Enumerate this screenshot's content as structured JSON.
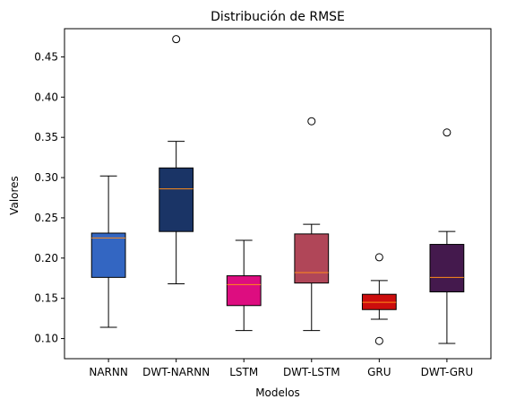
{
  "chart_data": {
    "type": "box",
    "title": "Distribución de RMSE",
    "xlabel": "Modelos",
    "ylabel": "Valores",
    "ylim": [
      0.075,
      0.485
    ],
    "yticks": [
      0.1,
      0.15,
      0.2,
      0.25,
      0.3,
      0.35,
      0.4,
      0.45
    ],
    "ytick_labels": [
      "0.10",
      "0.15",
      "0.20",
      "0.25",
      "0.30",
      "0.35",
      "0.40",
      "0.45"
    ],
    "grid": false,
    "median_color": "#ff8c1a",
    "categories": [
      "NARNN",
      "DWT-NARNN",
      "LSTM",
      "DWT-LSTM",
      "GRU",
      "DWT-GRU"
    ],
    "boxes": [
      {
        "name": "NARNN",
        "color": "#3366c2",
        "whislo": 0.114,
        "q1": 0.176,
        "med": 0.225,
        "q3": 0.231,
        "whishi": 0.302,
        "fliers": []
      },
      {
        "name": "DWT-NARNN",
        "color": "#1a3466",
        "whislo": 0.168,
        "q1": 0.233,
        "med": 0.286,
        "q3": 0.312,
        "whishi": 0.345,
        "fliers": [
          0.472
        ]
      },
      {
        "name": "LSTM",
        "color": "#dd0d80",
        "whislo": 0.11,
        "q1": 0.141,
        "med": 0.167,
        "q3": 0.178,
        "whishi": 0.222,
        "fliers": []
      },
      {
        "name": "DWT-LSTM",
        "color": "#b04658",
        "whislo": 0.11,
        "q1": 0.169,
        "med": 0.182,
        "q3": 0.23,
        "whishi": 0.242,
        "fliers": [
          0.37
        ]
      },
      {
        "name": "GRU",
        "color": "#cc0d0d",
        "whislo": 0.124,
        "q1": 0.136,
        "med": 0.145,
        "q3": 0.155,
        "whishi": 0.172,
        "fliers": [
          0.201,
          0.097
        ]
      },
      {
        "name": "DWT-GRU",
        "color": "#44194d",
        "whislo": 0.094,
        "q1": 0.158,
        "med": 0.176,
        "q3": 0.217,
        "whishi": 0.233,
        "fliers": [
          0.356
        ]
      }
    ]
  }
}
